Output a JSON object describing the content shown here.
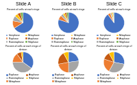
{
  "chart_data": [
    {
      "type": "pie",
      "title": "Slide A",
      "subtitle": "Percent of cells at each stage",
      "categories": [
        "Interphase",
        "Prophase",
        "Prometaphase",
        "Metaphase",
        "Anaphase",
        "Telophase"
      ],
      "values": [
        66,
        12,
        8,
        5,
        5,
        4
      ],
      "colors": [
        "#4472C4",
        "#ED7D31",
        "#A5A5A5",
        "#FFC000",
        "#C55A11",
        "#70AD47"
      ],
      "legend": "lower center"
    },
    {
      "type": "pie",
      "title": "Slide B",
      "subtitle": "Percent of cells at each stage",
      "categories": [
        "Interphase",
        "Prophase",
        "Prometaphase",
        "Metaphase",
        "Anaphase",
        "Telophase"
      ],
      "values": [
        80,
        7,
        4,
        3,
        3,
        3
      ],
      "colors": [
        "#4472C4",
        "#ED7D31",
        "#A5A5A5",
        "#FFC000",
        "#C55A11",
        "#70AD47"
      ],
      "legend": "lower center"
    },
    {
      "type": "pie",
      "title": "Slide C",
      "subtitle": "Percent of cells at each stage",
      "categories": [
        "Interphase",
        "Prophase",
        "Prometaphase",
        "Metaphase",
        "Anaphase",
        "Telophase"
      ],
      "values": [
        90,
        4,
        2,
        2,
        1,
        1
      ],
      "colors": [
        "#4472C4",
        "#ED7D31",
        "#A5A5A5",
        "#FFC000",
        "#C55A11",
        "#70AD47"
      ],
      "legend": "lower center"
    },
    {
      "type": "pie",
      "title": "Percent of cells at each stage of\ndivision",
      "categories": [
        "Prophase",
        "Prometaphase",
        "Metaphase",
        "Anaphase",
        "Telophase"
      ],
      "values": [
        35,
        40,
        15,
        7,
        3
      ],
      "colors": [
        "#4472C4",
        "#A5A5A5",
        "#ED7D31",
        "#C55A11",
        "#FFC000"
      ],
      "legend": "lower center"
    },
    {
      "type": "pie",
      "title": "Percent of cells at each stage of\ndivision",
      "categories": [
        "Prophase",
        "Prometaphase",
        "Metaphase",
        "Anaphase",
        "Telophase"
      ],
      "values": [
        23,
        27,
        22,
        20,
        8
      ],
      "colors": [
        "#4472C4",
        "#A5A5A5",
        "#ED7D31",
        "#C55A11",
        "#FFC000"
      ],
      "legend": "lower center"
    },
    {
      "type": "pie",
      "title": "Percent of cells at each stage of\ndivision",
      "categories": [
        "Prophase",
        "Prometaphase",
        "Metaphase",
        "Anaphase",
        "Telophase"
      ],
      "values": [
        28,
        30,
        22,
        12,
        8
      ],
      "colors": [
        "#4472C4",
        "#A5A5A5",
        "#ED7D31",
        "#C55A11",
        "#FFC000"
      ],
      "legend": "lower center"
    }
  ]
}
